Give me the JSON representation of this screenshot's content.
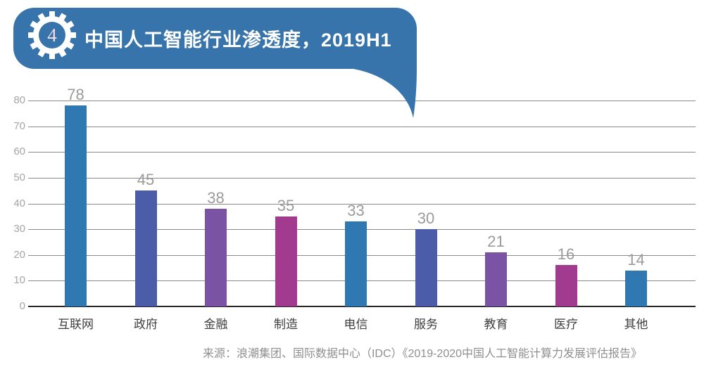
{
  "header": {
    "badge_number": "4",
    "title": "中国人工智能行业渗透度，2019H1",
    "banner_color": "#3874ac",
    "badge_number_color": "#f4dce2",
    "icon": "gear-icon"
  },
  "chart_data": {
    "type": "bar",
    "title": "中国人工智能行业渗透度，2019H1",
    "categories": [
      "互联网",
      "政府",
      "金融",
      "制造",
      "电信",
      "服务",
      "教育",
      "医疗",
      "其他"
    ],
    "values": [
      78,
      45,
      38,
      35,
      33,
      30,
      21,
      16,
      14
    ],
    "bar_colors": [
      "#2f78b2",
      "#4b5ca8",
      "#7b53a4",
      "#a23b90",
      "#2f78b2",
      "#4b5ca8",
      "#7b53a4",
      "#a23b90",
      "#2f78b2"
    ],
    "xlabel": "",
    "ylabel": "",
    "ylim": [
      0,
      80
    ],
    "yticks": [
      0,
      10,
      20,
      30,
      40,
      50,
      60,
      70,
      80
    ],
    "grid": true,
    "legend": false,
    "gridline_color": "#8a8a8a",
    "axis_color": "#262626",
    "tick_label_color": "#a6a6a6",
    "value_label_color": "#9b9b9b",
    "category_label_color": "#3d3d3d"
  },
  "source": {
    "text": "来源：浪潮集团、国际数据中心（IDC）《2019-2020中国人工智能计算力发展评估报告》"
  }
}
